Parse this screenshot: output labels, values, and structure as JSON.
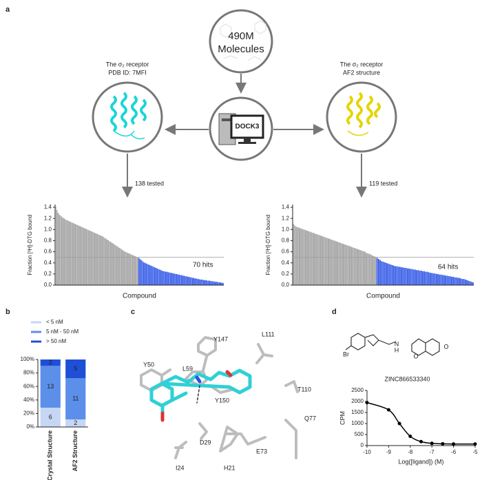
{
  "panels": [
    "a",
    "b",
    "c",
    "d"
  ],
  "diagram": {
    "library": [
      "490M",
      "Molecules"
    ],
    "docking": "DOCK3",
    "left": {
      "title": "The σ₂ receptor",
      "subtitle": "PDB ID: 7MFI",
      "tested": "138 tested"
    },
    "right": {
      "title": "The σ₂ receptor",
      "subtitle": "AF2 structure",
      "tested": "119 tested"
    }
  },
  "structure": {
    "residues": [
      "Y147",
      "L111",
      "Y50",
      "L59",
      "T110",
      "Y150",
      "Q77",
      "D29",
      "E73",
      "I24",
      "H21"
    ]
  },
  "molecule_atoms": [
    "Br",
    "N",
    "H",
    "O",
    "O"
  ],
  "chart_data": [
    {
      "type": "bar",
      "ylabel": "Fraction [³H]-DTG bound",
      "xlabel": "Compound",
      "annotation": "70 hits",
      "color": "#9e9e9e",
      "hit_color": "#2d55e6",
      "threshold": 0.5,
      "ylim": [
        0,
        1.45
      ],
      "yticks": [
        {
          "value": 0,
          "label": "0.0"
        },
        0.2,
        0.4,
        0.6,
        0.8,
        {
          "value": 1,
          "label": "1.0"
        },
        1.2,
        1.4
      ],
      "values": [
        1.42,
        1.35,
        1.3,
        1.27,
        1.25,
        1.23,
        1.21,
        1.2,
        1.18,
        1.17,
        1.16,
        1.15,
        1.14,
        1.13,
        1.12,
        1.11,
        1.1,
        1.09,
        1.08,
        1.07,
        1.06,
        1.05,
        1.04,
        1.03,
        1.02,
        1.01,
        1.0,
        0.99,
        0.98,
        0.97,
        0.96,
        0.95,
        0.94,
        0.93,
        0.92,
        0.91,
        0.9,
        0.89,
        0.88,
        0.87,
        0.85,
        0.84,
        0.82,
        0.81,
        0.79,
        0.78,
        0.76,
        0.75,
        0.73,
        0.72,
        0.7,
        0.69,
        0.67,
        0.66,
        0.64,
        0.63,
        0.61,
        0.6,
        0.59,
        0.58,
        0.57,
        0.56,
        0.55,
        0.54,
        0.53,
        0.52,
        0.51,
        0.5,
        0.49,
        0.47,
        0.45,
        0.43,
        0.41,
        0.4,
        0.39,
        0.38,
        0.37,
        0.36,
        0.35,
        0.34,
        0.33,
        0.32,
        0.31,
        0.3,
        0.29,
        0.28,
        0.27,
        0.26,
        0.25,
        0.25,
        0.24,
        0.24,
        0.23,
        0.23,
        0.22,
        0.22,
        0.21,
        0.21,
        0.2,
        0.2,
        0.19,
        0.19,
        0.18,
        0.18,
        0.17,
        0.17,
        0.16,
        0.16,
        0.15,
        0.15,
        0.14,
        0.14,
        0.13,
        0.13,
        0.12,
        0.12,
        0.11,
        0.11,
        0.1,
        0.1,
        0.1,
        0.09,
        0.09,
        0.09,
        0.08,
        0.08,
        0.08,
        0.07,
        0.07,
        0.07,
        0.06,
        0.06,
        0.06,
        0.05,
        0.05,
        0.05,
        0.04,
        0.04
      ]
    },
    {
      "type": "bar",
      "ylabel": "Fraction [³H]-DTG bound",
      "xlabel": "Compound",
      "annotation": "64 hits",
      "color": "#9e9e9e",
      "hit_color": "#2d55e6",
      "threshold": 0.5,
      "ylim": [
        0,
        1.45
      ],
      "yticks": [
        {
          "value": 0,
          "label": "0.0"
        },
        0.2,
        0.4,
        0.6,
        0.8,
        {
          "value": 1,
          "label": "1.0"
        },
        1.2,
        1.4
      ],
      "values": [
        1.1,
        1.07,
        1.05,
        1.04,
        1.03,
        1.02,
        1.01,
        1.0,
        0.99,
        0.98,
        0.97,
        0.96,
        0.95,
        0.94,
        0.93,
        0.92,
        0.91,
        0.9,
        0.89,
        0.88,
        0.87,
        0.86,
        0.85,
        0.84,
        0.83,
        0.82,
        0.81,
        0.8,
        0.79,
        0.78,
        0.77,
        0.76,
        0.75,
        0.74,
        0.73,
        0.72,
        0.71,
        0.7,
        0.69,
        0.68,
        0.67,
        0.66,
        0.65,
        0.64,
        0.63,
        0.62,
        0.61,
        0.6,
        0.58,
        0.57,
        0.56,
        0.55,
        0.53,
        0.52,
        0.51,
        0.49,
        0.47,
        0.45,
        0.43,
        0.42,
        0.41,
        0.4,
        0.39,
        0.38,
        0.37,
        0.36,
        0.35,
        0.34,
        0.34,
        0.33,
        0.33,
        0.32,
        0.32,
        0.31,
        0.31,
        0.3,
        0.3,
        0.29,
        0.29,
        0.28,
        0.28,
        0.27,
        0.27,
        0.26,
        0.26,
        0.25,
        0.25,
        0.24,
        0.24,
        0.23,
        0.22,
        0.22,
        0.21,
        0.21,
        0.2,
        0.2,
        0.19,
        0.19,
        0.18,
        0.18,
        0.17,
        0.17,
        0.16,
        0.16,
        0.15,
        0.15,
        0.14,
        0.14,
        0.13,
        0.13,
        0.12,
        0.11,
        0.11,
        0.1,
        0.09,
        0.08,
        0.07,
        0.06,
        0.05
      ]
    },
    {
      "type": "stacked_bar",
      "categories": [
        "Crystal Structure",
        "AF2 Structure"
      ],
      "ylim": [
        0,
        100
      ],
      "yticks": [
        {
          "value": 0,
          "label": "0%"
        },
        {
          "value": 20,
          "label": "20%"
        },
        {
          "value": 40,
          "label": "40%"
        },
        {
          "value": 60,
          "label": "60%"
        },
        {
          "value": 80,
          "label": "80%"
        },
        {
          "value": 100,
          "label": "100%"
        }
      ],
      "series": [
        {
          "name": "< 5 nM",
          "color": "#c6d7f5",
          "values": [
            28.6,
            11.1
          ],
          "counts": [
            6,
            2
          ]
        },
        {
          "name": "5 nM - 50 nM",
          "color": "#5c8fe9",
          "values": [
            61.9,
            61.1
          ],
          "counts": [
            13,
            11
          ]
        },
        {
          "name": "> 50 nM",
          "color": "#1f4fd6",
          "values": [
            9.5,
            27.8
          ],
          "counts": [
            2,
            5
          ]
        }
      ]
    },
    {
      "type": "line",
      "title": "ZINC866533340",
      "xlabel": "Log([ligand]) (M)",
      "ylabel": "CPM",
      "color": "#000000",
      "x": [
        -10,
        -9,
        -8.5,
        -8,
        -7.5,
        -7,
        -6.5,
        -6,
        -5
      ],
      "values": [
        1950,
        1620,
        1000,
        420,
        180,
        100,
        80,
        70,
        70
      ],
      "xlim": [
        -10,
        -5
      ],
      "xticks": [
        -10,
        -9,
        -8,
        -7,
        -6,
        -5
      ],
      "ylim": [
        0,
        2500
      ],
      "yticks": [
        0,
        500,
        1000,
        1500,
        2000,
        2500
      ]
    }
  ]
}
